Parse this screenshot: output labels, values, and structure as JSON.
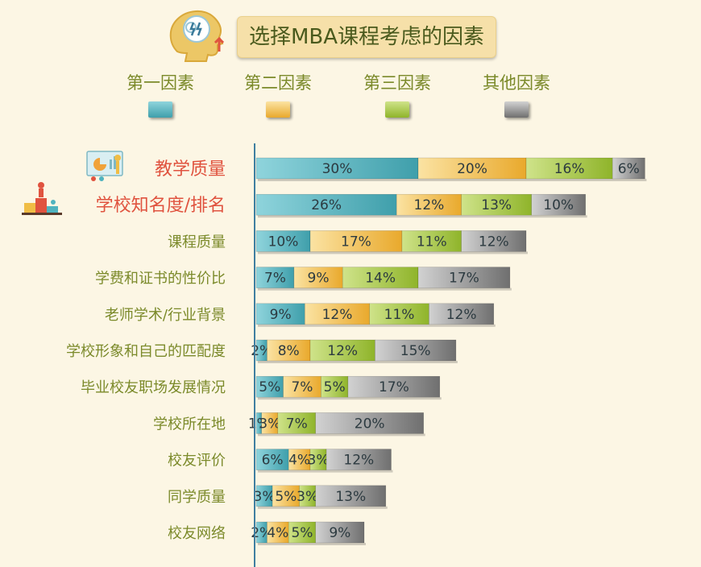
{
  "title": "选择MBA课程考虑的因素",
  "legend": [
    {
      "label": "第一因素",
      "color": "#4fb3bf"
    },
    {
      "label": "第二因素",
      "color": "#f0bd45"
    },
    {
      "label": "第三因素",
      "color": "#a6c83a"
    },
    {
      "label": "其他因素",
      "color": "#8e8e8e"
    }
  ],
  "chart_data": {
    "type": "bar",
    "orientation": "horizontal",
    "stacked": true,
    "categories": [
      "教学质量",
      "学校知名度/排名",
      "课程质量",
      "学费和证书的性价比",
      "老师学术/行业背景",
      "学校形象和自己的匹配度",
      "毕业校友职场发展情况",
      "学校所在地",
      "校友评价",
      "同学质量",
      "校友网络"
    ],
    "highlighted_categories": [
      "教学质量",
      "学校知名度/排名"
    ],
    "series": [
      {
        "name": "第一因素",
        "values": [
          30,
          26,
          10,
          7,
          9,
          2,
          5,
          1,
          6,
          3,
          2
        ],
        "labels": [
          "30%",
          "26%",
          "10%",
          "7%",
          "9%",
          "2%",
          "5%",
          "1%",
          "6%",
          "3%",
          "2%"
        ]
      },
      {
        "name": "第二因素",
        "values": [
          20,
          12,
          17,
          9,
          12,
          8,
          7,
          3,
          4,
          5,
          4
        ],
        "labels": [
          "20%",
          "12%",
          "17%",
          "9%",
          "12%",
          "8%",
          "7%",
          "3%",
          "4%",
          "5%",
          "4%"
        ]
      },
      {
        "name": "第三因素",
        "values": [
          16,
          13,
          11,
          14,
          11,
          12,
          5,
          7,
          3,
          3,
          5
        ],
        "labels": [
          "16%",
          "13%",
          "11%",
          "14%",
          "11%",
          "12%",
          "5%",
          "7%",
          "3%",
          "3%",
          "5%"
        ]
      },
      {
        "name": "其他因素",
        "values": [
          6,
          10,
          12,
          17,
          12,
          15,
          17,
          20,
          12,
          13,
          9
        ],
        "labels": [
          "6%",
          "10%",
          "12%",
          "17%",
          "12%",
          "15%",
          "17%",
          "20%",
          "12%",
          "13%",
          "9%"
        ]
      }
    ],
    "colors": {
      "第一因素": [
        "#8fd4dc",
        "#3f9fab"
      ],
      "第二因素": [
        "#fbe3a3",
        "#e9a92c"
      ],
      "第三因素": [
        "#cfe38a",
        "#8fb42a"
      ],
      "其他因素": [
        "#d2d2d2",
        "#6f6f6f"
      ]
    },
    "label_color_normal": "#7b8a2a",
    "label_color_highlight": "#e0533f",
    "legend_position": "top"
  }
}
